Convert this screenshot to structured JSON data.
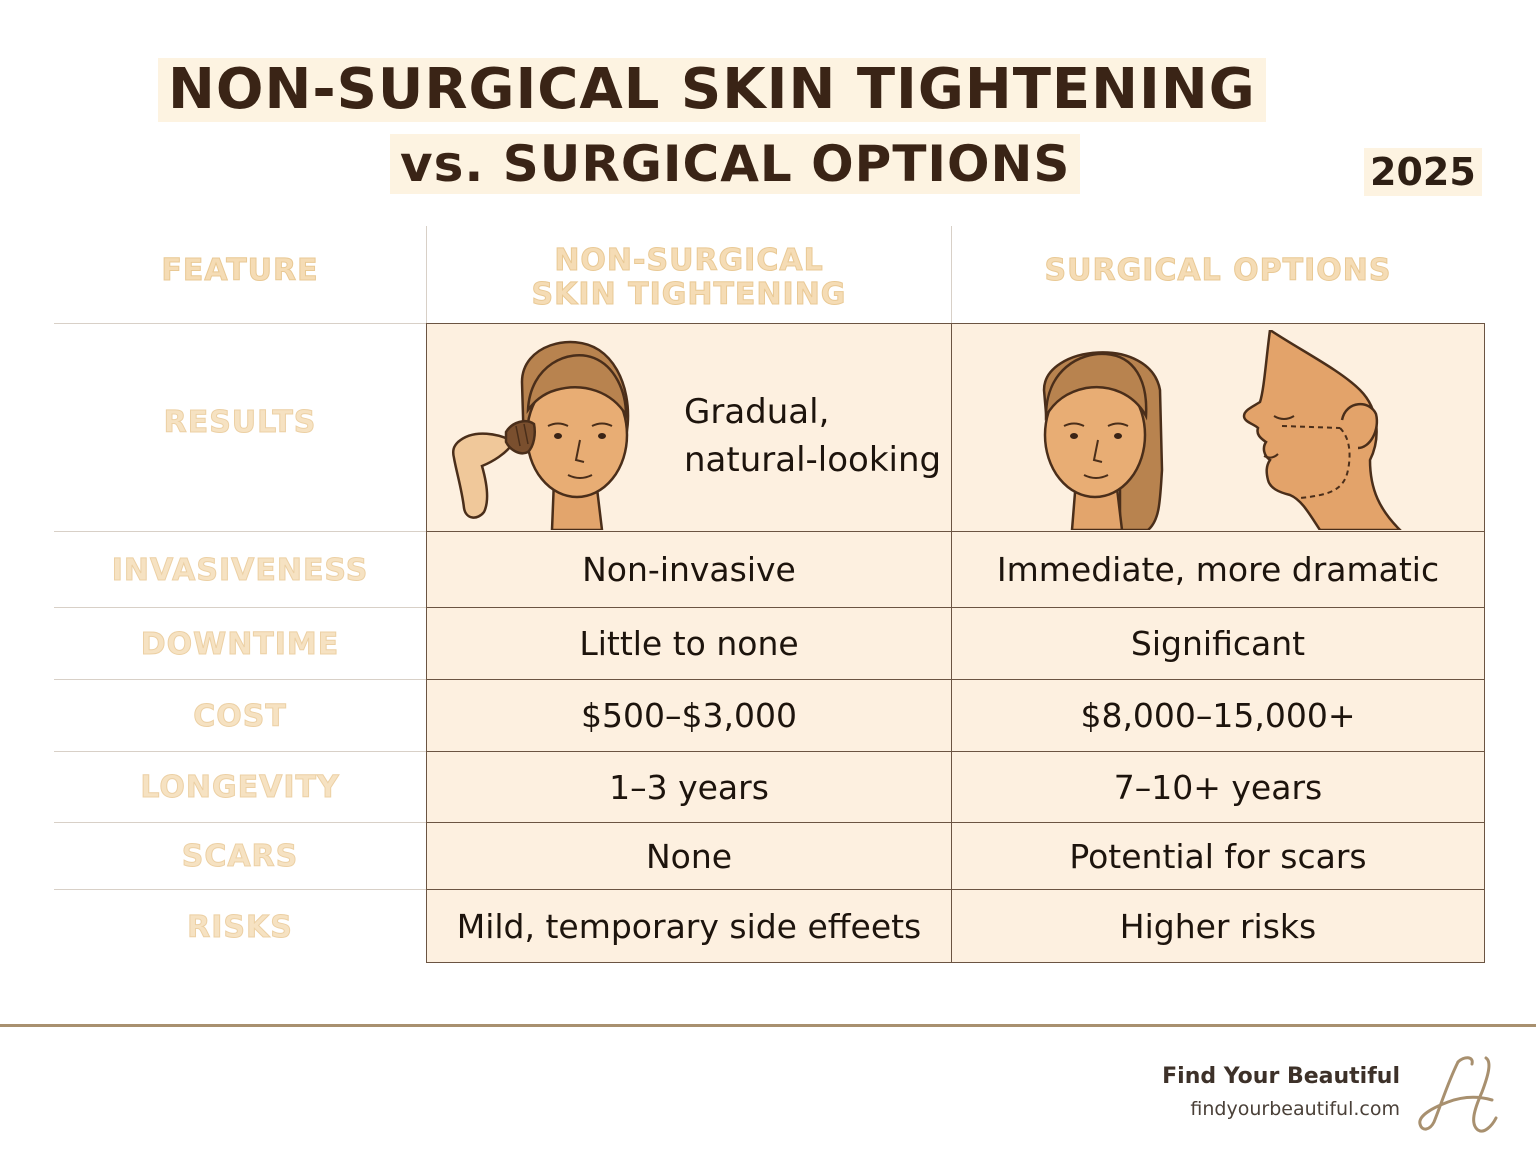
{
  "title": {
    "line1": "NON-SURGICAL SKIN TIGHTENING",
    "line2": "vs. SURGICAL OPTIONS",
    "year": "2025"
  },
  "table": {
    "headers": {
      "feature": "FEATURE",
      "nonsurgical_line1": "NON-SURGICAL",
      "nonsurgical_line2": "SKIN TIGHTENING",
      "surgical": "SURGICAL OPTIONS"
    },
    "rows": [
      {
        "feature": "RESULTS",
        "non_surgical": "Gradual, natural-looking",
        "non_surgical_line1": "Gradual,",
        "non_surgical_line2": "natural-looking",
        "surgical": ""
      },
      {
        "feature": "INVASIVENESS",
        "non_surgical": "Non-invasive",
        "surgical": "Immediate, more dramatic"
      },
      {
        "feature": "DOWNTIME",
        "non_surgical": "Little to none",
        "surgical": "Significant"
      },
      {
        "feature": "COST",
        "non_surgical": "$500–$3,000",
        "surgical": "$8,000–15,000+"
      },
      {
        "feature": "LONGEVITY",
        "non_surgical": "1–3 years",
        "surgical": "7–10+ years"
      },
      {
        "feature": "SCARS",
        "non_surgical": "None",
        "surgical": "Potential for scars"
      },
      {
        "feature": "RISKS",
        "non_surgical": "Mild, temporary side effeets",
        "surgical": "Higher risks"
      }
    ]
  },
  "illustrations": {
    "non_surgical": "woman-with-handheld-device-icon",
    "surgical_front": "woman-face-front-icon",
    "surgical_profile": "face-profile-with-incision-lines-icon"
  },
  "footer": {
    "brand": "Find Your Beautiful",
    "site": "findyourbeautiful.com",
    "logo": "script-h-logo-icon"
  },
  "colors": {
    "title_highlight": "#fdf3e1",
    "title_text": "#3a2416",
    "cell_fill": "#fdf0e0",
    "cell_border": "#6b5442",
    "header_text": "#f5dcb5",
    "footer_rule": "#a8906f"
  }
}
